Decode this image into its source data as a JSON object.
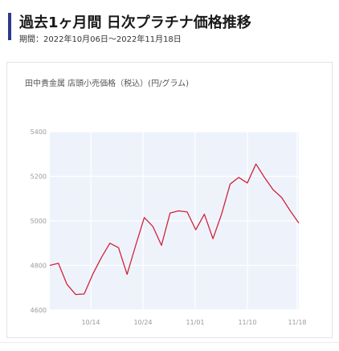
{
  "header": {
    "title": "過去1ヶ月間 日次プラチナ価格推移",
    "period": "期間：2022年10月06日〜2022年11月18日"
  },
  "colors": {
    "accent_bar": "#2b3a8c",
    "line": "#d1223a",
    "plot_bg": "#eef3fb"
  },
  "chart_data": {
    "type": "line",
    "title": "田中貴金属 店頭小売価格（税込）(円/グラム)",
    "xlabel": "",
    "ylabel": "",
    "ylim": [
      4600,
      5400
    ],
    "yticks": [
      4600,
      4800,
      5000,
      5200,
      5400
    ],
    "xticks": [
      "10/14",
      "10/24",
      "11/01",
      "11/10",
      "11/18"
    ],
    "grid": true,
    "series": [
      {
        "values": [
          4800,
          4810,
          4715,
          4670,
          4672,
          4760,
          4835,
          4900,
          4880,
          4760,
          4890,
          5015,
          4975,
          4890,
          5035,
          5045,
          5040,
          4960,
          5030,
          4920,
          5030,
          5165,
          5195,
          5170,
          5255,
          5195,
          5140,
          5105,
          5045,
          4990
        ]
      }
    ]
  }
}
